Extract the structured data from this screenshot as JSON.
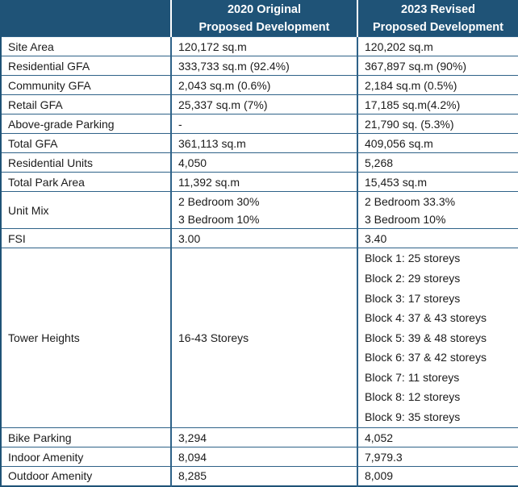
{
  "colors": {
    "header_bg": "#1F5377",
    "header_text": "#FFFFFF",
    "border": "#2E6288",
    "body_text": "#1B1B1B",
    "row_bg": "#FFFFFF"
  },
  "table": {
    "header": {
      "label_col": "",
      "col_2020": "2020 Original\nProposed Development",
      "col_2023": "2023 Revised\nProposed Development"
    },
    "rows": [
      {
        "label": "Site Area",
        "y2020": "120,172 sq.m",
        "y2023": "120,202 sq.m"
      },
      {
        "label": "Residential GFA",
        "y2020": "333,733 sq.m (92.4%)",
        "y2023": "367,897 sq.m (90%)"
      },
      {
        "label": "Community GFA",
        "y2020": "2,043 sq.m (0.6%)",
        "y2023": "2,184 sq.m (0.5%)"
      },
      {
        "label": "Retail GFA",
        "y2020": "25,337 sq.m (7%)",
        "y2023": "17,185 sq.m(4.2%)"
      },
      {
        "label": "Above-grade Parking",
        "y2020": "-",
        "y2023": "21,790 sq. (5.3%)"
      },
      {
        "label": "Total GFA",
        "y2020": "361,113 sq.m",
        "y2023": "409,056 sq.m"
      },
      {
        "label": "Residential Units",
        "y2020": "4,050",
        "y2023": "5,268"
      },
      {
        "label": "Total Park Area",
        "y2020": "11,392 sq.m",
        "y2023": "15,453 sq.m"
      },
      {
        "label": "Unit Mix",
        "y2020": "2 Bedroom 30%\n3 Bedroom 10%",
        "y2023": "2 Bedroom 33.3%\n3 Bedroom 10%"
      },
      {
        "label": "FSI",
        "y2020": "3.00",
        "y2023": "3.40"
      },
      {
        "label": "Tower Heights",
        "y2020": "16-43 Storeys",
        "y2023": "Block 1: 25 storeys\nBlock 2: 29 storeys\nBlock 3: 17 storeys\nBlock 4: 37 & 43 storeys\nBlock 5: 39 & 48 storeys\nBlock 6: 37 & 42 storeys\nBlock 7: 11 storeys\nBlock 8: 12 storeys\nBlock 9: 35 storeys"
      },
      {
        "label": "Bike Parking",
        "y2020": "3,294",
        "y2023": "4,052"
      },
      {
        "label": "Indoor Amenity",
        "y2020": "8,094",
        "y2023": "7,979.3"
      },
      {
        "label": "Outdoor Amenity",
        "y2020": "8,285",
        "y2023": "8,009"
      }
    ]
  }
}
